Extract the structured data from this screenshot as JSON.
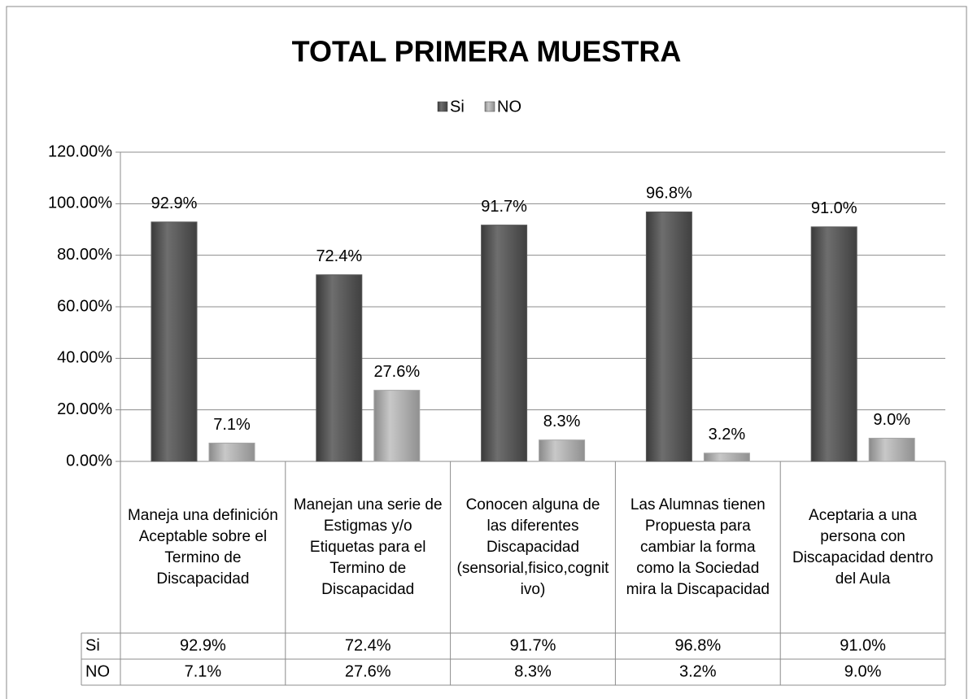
{
  "chart_data": {
    "type": "bar",
    "title": "TOTAL PRIMERA MUESTRA",
    "categories": [
      "Maneja una definición Aceptable sobre el Termino de Discapacidad",
      "Manejan una serie de Estigmas y/o Etiquetas para el Termino de Discapacidad",
      "Conocen alguna de las diferentes Discapacidad (sensorial,fisico,cognitivo)",
      "Las Alumnas tienen Propuesta para cambiar la forma como la Sociedad mira la Discapacidad",
      "Aceptaria a una persona con Discapacidad dentro del Aula"
    ],
    "series": [
      {
        "name": "Si",
        "color": "#595959",
        "values": [
          92.9,
          72.4,
          91.7,
          96.8,
          91.0
        ],
        "value_labels": [
          "92.9%",
          "72.4%",
          "91.7%",
          "96.8%",
          "91.0%"
        ]
      },
      {
        "name": "NO",
        "color": "#a6a6a6",
        "values": [
          7.1,
          27.6,
          8.3,
          3.2,
          9.0
        ],
        "value_labels": [
          "7.1%",
          "27.6%",
          "8.3%",
          "3.2%",
          "9.0%"
        ]
      }
    ],
    "ylim": [
      0,
      120
    ],
    "yticks": [
      {
        "value": 0,
        "label": "0.00%"
      },
      {
        "value": 20,
        "label": "20.00%"
      },
      {
        "value": 40,
        "label": "40.00%"
      },
      {
        "value": 60,
        "label": "60.00%"
      },
      {
        "value": 80,
        "label": "80.00%"
      },
      {
        "value": 100,
        "label": "100.00%"
      },
      {
        "value": 120,
        "label": "120.00%"
      }
    ],
    "grid": true,
    "legend": "top"
  }
}
